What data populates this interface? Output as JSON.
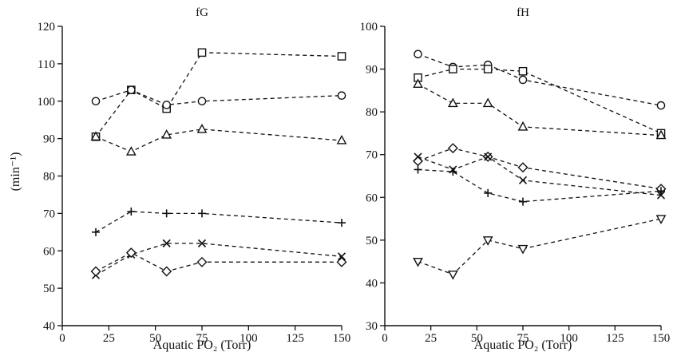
{
  "ylabel": "(min⁻¹)",
  "chart_data": [
    {
      "type": "line",
      "title": "fG",
      "xlabel": "Aquatic PO₂ (Torr)",
      "ylabel": "(min⁻¹)",
      "xlim": [
        0,
        150
      ],
      "ylim": [
        40,
        120
      ],
      "xticks": [
        0,
        25,
        50,
        75,
        100,
        125,
        150
      ],
      "yticks": [
        40,
        50,
        60,
        70,
        80,
        90,
        100,
        110,
        120
      ],
      "grid": false,
      "series": [
        {
          "marker": "square",
          "x": [
            18,
            37,
            56,
            75,
            150
          ],
          "y": [
            90.5,
            103,
            98,
            113,
            112
          ]
        },
        {
          "marker": "circle",
          "x": [
            18,
            37,
            56,
            75,
            150
          ],
          "y": [
            100,
            103,
            99,
            100,
            101.5
          ]
        },
        {
          "marker": "triangle",
          "x": [
            18,
            37,
            56,
            75,
            150
          ],
          "y": [
            90.5,
            86.5,
            91,
            92.5,
            89.5
          ]
        },
        {
          "marker": "plus",
          "x": [
            18,
            37,
            56,
            75,
            150
          ],
          "y": [
            65,
            70.5,
            70,
            70,
            67.5
          ]
        },
        {
          "marker": "cross",
          "x": [
            18,
            37,
            56,
            75,
            150
          ],
          "y": [
            53.5,
            59,
            62,
            62,
            58.5
          ]
        },
        {
          "marker": "diamond",
          "x": [
            18,
            37,
            56,
            75,
            150
          ],
          "y": [
            54.5,
            59.5,
            54.5,
            57,
            57
          ]
        }
      ]
    },
    {
      "type": "line",
      "title": "fH",
      "xlabel": "Aquatic PO₂ (Torr)",
      "ylabel": "",
      "xlim": [
        0,
        150
      ],
      "ylim": [
        30,
        100
      ],
      "xticks": [
        0,
        25,
        50,
        75,
        100,
        125,
        150
      ],
      "yticks": [
        30,
        40,
        50,
        60,
        70,
        80,
        90,
        100
      ],
      "grid": false,
      "series": [
        {
          "marker": "circle",
          "x": [
            18,
            37,
            56,
            75,
            150
          ],
          "y": [
            93.5,
            90.5,
            91,
            87.5,
            81.5
          ]
        },
        {
          "marker": "square",
          "x": [
            18,
            37,
            56,
            75,
            150
          ],
          "y": [
            88,
            90,
            90,
            89.5,
            75
          ]
        },
        {
          "marker": "triangle",
          "x": [
            18,
            37,
            56,
            75,
            150
          ],
          "y": [
            86.5,
            82,
            82,
            76.5,
            74.5
          ]
        },
        {
          "marker": "diamond",
          "x": [
            18,
            37,
            56,
            75,
            150
          ],
          "y": [
            68.5,
            71.5,
            69.5,
            67,
            62
          ]
        },
        {
          "marker": "cross",
          "x": [
            18,
            37,
            56,
            75,
            150
          ],
          "y": [
            69.5,
            66.5,
            69.5,
            64,
            60.5
          ]
        },
        {
          "marker": "plus",
          "x": [
            18,
            37,
            56,
            75,
            150
          ],
          "y": [
            66.5,
            66,
            61,
            59,
            61.5
          ]
        },
        {
          "marker": "invtriangle",
          "x": [
            18,
            37,
            56,
            75,
            150
          ],
          "y": [
            45,
            42,
            50,
            48,
            55
          ]
        }
      ]
    }
  ]
}
